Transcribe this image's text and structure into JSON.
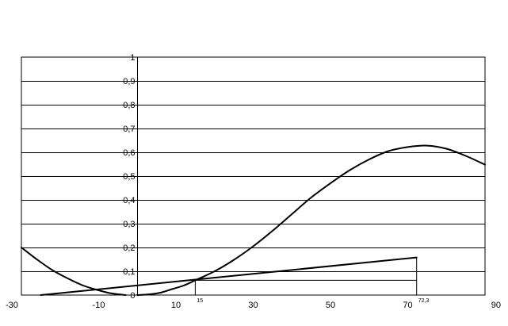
{
  "chart_data": {
    "type": "line",
    "title": "",
    "xlabel": "",
    "ylabel": "",
    "xlim": [
      -30,
      90
    ],
    "ylim": [
      0,
      1
    ],
    "grid": "horizontal",
    "legend": "none",
    "x_ticks": [
      -30,
      -10,
      10,
      30,
      50,
      70,
      90
    ],
    "x_tick_labels": [
      "-30",
      "-10",
      "10",
      "30",
      "50",
      "70",
      "90"
    ],
    "y_ticks": [
      0,
      0.1,
      0.2,
      0.3,
      0.4,
      0.5,
      0.6,
      0.7,
      0.8,
      0.9,
      1
    ],
    "y_tick_labels": [
      "0",
      "0,1",
      "0,2",
      "0,3",
      "0,4",
      "0,5",
      "0,6",
      "0,7",
      "0,8",
      "0,9",
      "1"
    ],
    "series": [
      {
        "x": [
          -30,
          -26,
          -22,
          -18,
          -14,
          -10,
          -7,
          -3
        ],
        "y": [
          0.2,
          0.15,
          0.105,
          0.07,
          0.04,
          0.02,
          0.008,
          0
        ]
      },
      {
        "x": [
          0,
          3,
          6,
          9,
          12,
          15,
          20,
          25,
          30,
          35,
          40,
          45,
          50,
          55,
          60,
          65,
          70,
          75,
          80,
          85,
          90
        ],
        "y": [
          0,
          0.003,
          0.01,
          0.025,
          0.04,
          0.062,
          0.1,
          0.148,
          0.205,
          0.27,
          0.34,
          0.41,
          0.47,
          0.525,
          0.57,
          0.605,
          0.622,
          0.628,
          0.615,
          0.585,
          0.548
        ]
      },
      {
        "x": [
          -25,
          72.3
        ],
        "y": [
          0,
          0.158
        ]
      }
    ],
    "reference_lines": [
      {
        "x": [
          15,
          72.3
        ],
        "y": [
          0.062,
          0.062
        ]
      },
      {
        "x": [
          15,
          15
        ],
        "y": [
          0,
          0.062
        ]
      },
      {
        "x": [
          72.3,
          72.3
        ],
        "y": [
          0,
          0.158
        ]
      }
    ],
    "annotations": [
      {
        "text": "15",
        "x": 15
      },
      {
        "text": "72,3",
        "x": 72.3
      }
    ]
  }
}
